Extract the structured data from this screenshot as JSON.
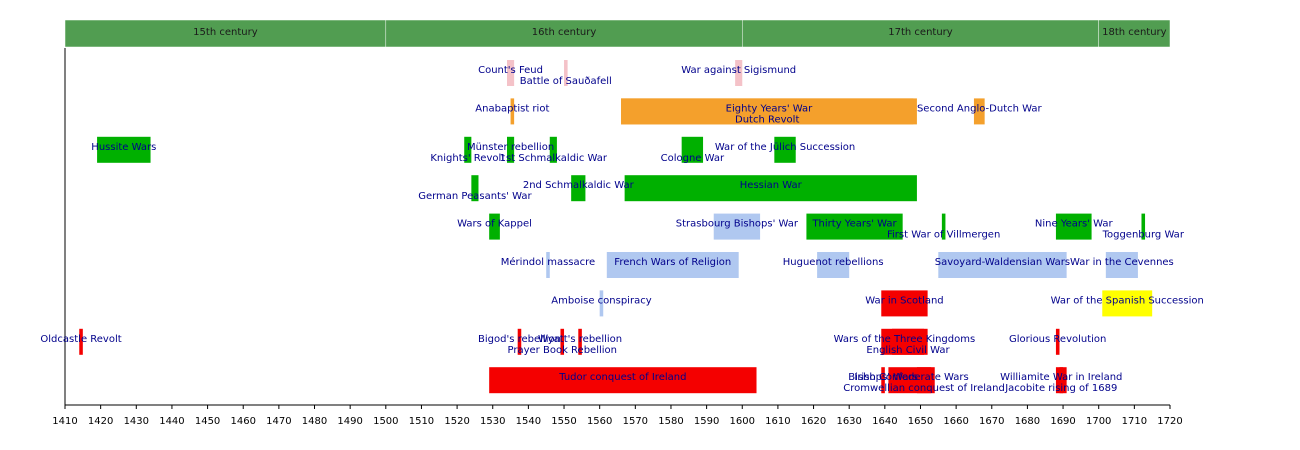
{
  "chart_data": {
    "type": "timeline",
    "xlim": [
      1410,
      1720
    ],
    "xticks": [
      1410,
      1420,
      1430,
      1440,
      1450,
      1460,
      1470,
      1480,
      1490,
      1500,
      1510,
      1520,
      1530,
      1540,
      1550,
      1560,
      1570,
      1580,
      1590,
      1600,
      1610,
      1620,
      1630,
      1640,
      1650,
      1660,
      1670,
      1680,
      1690,
      1700,
      1710,
      1720
    ],
    "period_color": "#519d51",
    "periods": [
      {
        "label": "15th century",
        "start": 1410,
        "end": 1500
      },
      {
        "label": "16th century",
        "start": 1500,
        "end": 1600
      },
      {
        "label": "17th century",
        "start": 1600,
        "end": 1700
      },
      {
        "label": "18th century",
        "start": 1700,
        "end": 1720
      }
    ],
    "rows": [
      [
        {
          "name": "Count's Feud",
          "start": 1534,
          "end": 1536,
          "color": "#f4c2c8"
        },
        {
          "name": "Battle of Sauðafell",
          "start": 1550,
          "end": 1551,
          "color": "#f4c2c8"
        },
        {
          "name": "War against Sigismund",
          "start": 1598,
          "end": 1600,
          "color": "#f4c2c8"
        }
      ],
      [
        {
          "name": "Anabaptist riot",
          "start": 1535,
          "end": 1536,
          "color": "#f4a02c"
        },
        {
          "name": "Eighty Years' War",
          "start": 1566,
          "end": 1649,
          "color": "#f4a02c"
        },
        {
          "name": "Dutch Revolt",
          "start": 1566,
          "end": 1648,
          "color": "#f4a02c"
        },
        {
          "name": "Second Anglo-Dutch War",
          "start": 1665,
          "end": 1668,
          "color": "#f4a02c"
        }
      ],
      [
        {
          "name": "Hussite Wars",
          "start": 1419,
          "end": 1434,
          "color": "#00b000"
        },
        {
          "name": "Knights' Revolt",
          "start": 1522,
          "end": 1524,
          "color": "#00b000"
        },
        {
          "name": "Münster rebellion",
          "start": 1534,
          "end": 1536,
          "color": "#00b000"
        },
        {
          "name": "1st Schmalkaldic War",
          "start": 1546,
          "end": 1548,
          "color": "#00b000"
        },
        {
          "name": "Cologne War",
          "start": 1583,
          "end": 1589,
          "color": "#00b000"
        },
        {
          "name": "War of the Jülich Succession",
          "start": 1609,
          "end": 1615,
          "color": "#00b000"
        }
      ],
      [
        {
          "name": "German Peasants' War",
          "start": 1524,
          "end": 1526,
          "color": "#00b000"
        },
        {
          "name": "2nd Schmalkaldic War",
          "start": 1552,
          "end": 1556,
          "color": "#00b000"
        },
        {
          "name": "Hessian War",
          "start": 1567,
          "end": 1649,
          "color": "#00b000"
        }
      ],
      [
        {
          "name": "Wars of Kappel",
          "start": 1529,
          "end": 1532,
          "color": "#00b000"
        },
        {
          "name": "Strasbourg Bishops' War",
          "start": 1592,
          "end": 1605,
          "color": "#b0c8f0"
        },
        {
          "name": "Thirty Years' War",
          "start": 1618,
          "end": 1645,
          "color": "#00b000"
        },
        {
          "name": "First War of Villmergen",
          "start": 1656,
          "end": 1657,
          "color": "#00b000"
        },
        {
          "name": "Nine Years' War",
          "start": 1688,
          "end": 1698,
          "color": "#00b000"
        },
        {
          "name": "Toggenburg War",
          "start": 1712,
          "end": 1713,
          "color": "#00b000"
        }
      ],
      [
        {
          "name": "Mérindol massacre",
          "start": 1545,
          "end": 1546,
          "color": "#b0c8f0"
        },
        {
          "name": "French Wars of Religion",
          "start": 1562,
          "end": 1599,
          "color": "#b0c8f0"
        },
        {
          "name": "Huguenot rebellions",
          "start": 1621,
          "end": 1630,
          "color": "#b0c8f0"
        },
        {
          "name": "Savoyard-Waldensian Wars",
          "start": 1655,
          "end": 1691,
          "color": "#b0c8f0"
        },
        {
          "name": "War in the Cevennes",
          "start": 1702,
          "end": 1711,
          "color": "#b0c8f0"
        }
      ],
      [
        {
          "name": "Amboise conspiracy",
          "start": 1560,
          "end": 1561,
          "color": "#b0c8f0"
        },
        {
          "name": "War in Scotland",
          "start": 1639,
          "end": 1652,
          "color": "#f40000"
        },
        {
          "name": "War of the Spanish Succession",
          "start": 1701,
          "end": 1715,
          "color": "#ffff00"
        }
      ],
      [
        {
          "name": "Oldcastle Revolt",
          "start": 1414,
          "end": 1415,
          "color": "#f40000"
        },
        {
          "name": "Bigod's rebellion",
          "start": 1537,
          "end": 1538,
          "color": "#f40000"
        },
        {
          "name": "Prayer Book Rebellion",
          "start": 1549,
          "end": 1550,
          "color": "#f40000"
        },
        {
          "name": "Wyatt's rebellion",
          "start": 1554,
          "end": 1555,
          "color": "#f40000"
        },
        {
          "name": "Wars of the Three Kingdoms",
          "start": 1639,
          "end": 1652,
          "color": "#f40000"
        },
        {
          "name": "English Civil War",
          "start": 1642,
          "end": 1651,
          "color": "#f40000"
        },
        {
          "name": "Glorious Revolution",
          "start": 1688,
          "end": 1689,
          "color": "#f40000"
        }
      ],
      [
        {
          "name": "Tudor conquest of Ireland",
          "start": 1529,
          "end": 1604,
          "color": "#f40000"
        },
        {
          "name": "Bishops' Wars",
          "start": 1639,
          "end": 1640,
          "color": "#f40000"
        },
        {
          "name": "Irish Confederate Wars",
          "start": 1641,
          "end": 1654,
          "color": "#f40000"
        },
        {
          "name": "Cromwellian conquest of Ireland",
          "start": 1649,
          "end": 1653,
          "color": "#f40000"
        },
        {
          "name": "Williamite War in Ireland",
          "start": 1688,
          "end": 1691,
          "color": "#f40000"
        },
        {
          "name": "Jacobite rising of 1689",
          "start": 1689,
          "end": 1690,
          "color": "#f40000"
        }
      ]
    ]
  }
}
